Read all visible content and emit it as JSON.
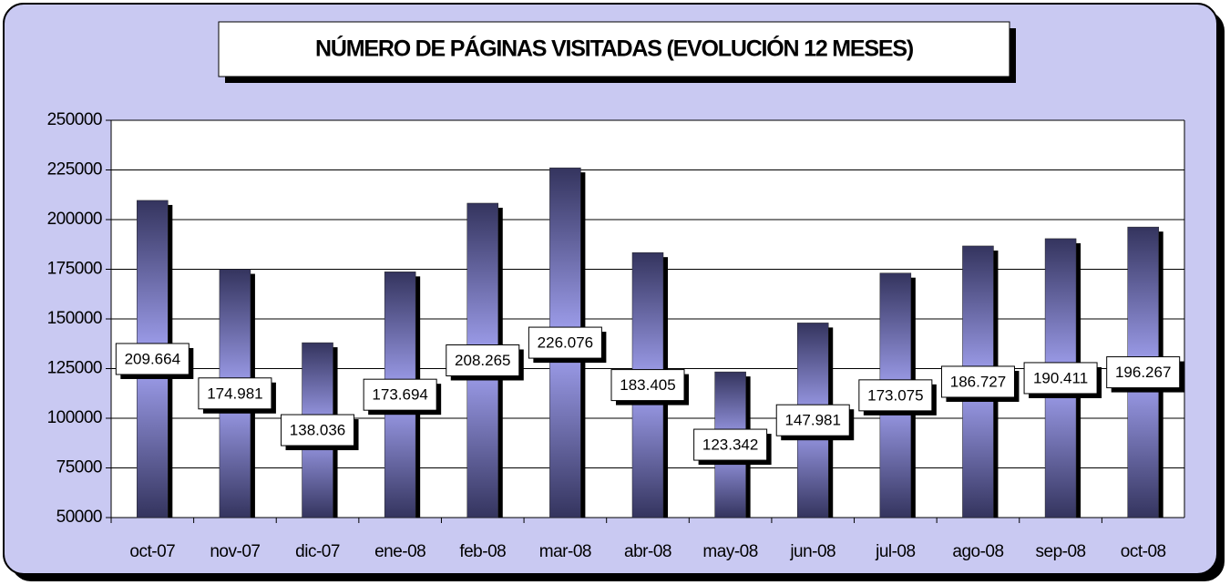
{
  "chart_data": {
    "type": "bar",
    "title": "NÚMERO DE PÁGINAS VISITADAS  (EVOLUCIÓN 12 MESES)",
    "categories": [
      "oct-07",
      "nov-07",
      "dic-07",
      "ene-08",
      "feb-08",
      "mar-08",
      "abr-08",
      "may-08",
      "jun-08",
      "jul-08",
      "ago-08",
      "sep-08",
      "oct-08"
    ],
    "values": [
      209664,
      174981,
      138036,
      173694,
      208265,
      226076,
      183405,
      123342,
      147981,
      173075,
      186727,
      190411,
      196267
    ],
    "value_labels": [
      "209.664",
      "174.981",
      "138.036",
      "173.694",
      "208.265",
      "226.076",
      "183.405",
      "123.342",
      "147.981",
      "173.075",
      "186.727",
      "190.411",
      "196.267"
    ],
    "color": "#9a9aee",
    "ylim": [
      50000,
      250000
    ],
    "yticks": [
      50000,
      75000,
      100000,
      125000,
      150000,
      175000,
      200000,
      225000,
      250000
    ],
    "grid": true
  }
}
